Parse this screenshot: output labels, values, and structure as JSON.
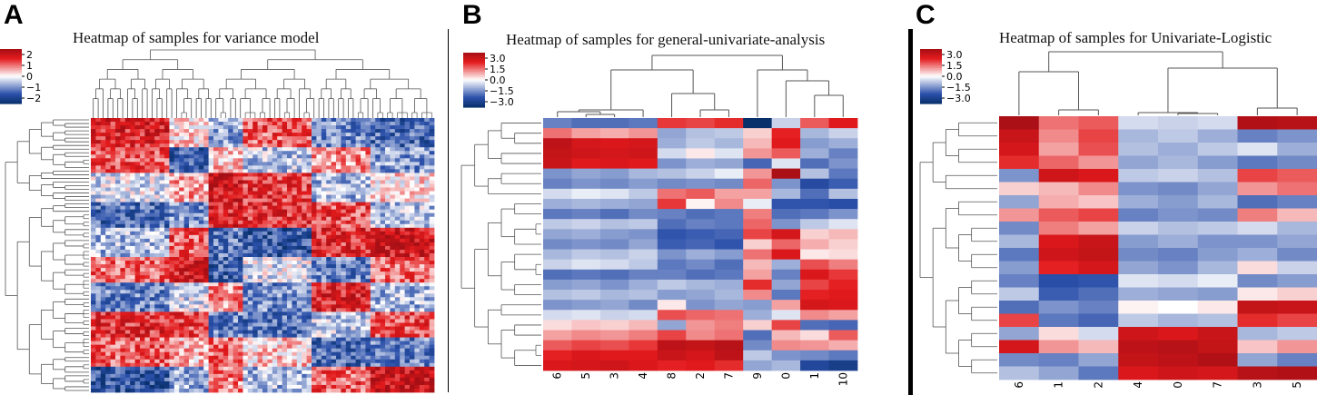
{
  "panels": [
    {
      "letter": "A",
      "title": "Heatmap of samples for variance model"
    },
    {
      "letter": "B",
      "title": "Heatmap of samples for general-univariate-analysis"
    },
    {
      "letter": "C",
      "title": "Heatmap of samples for Univariate-Logistic"
    }
  ],
  "colors": {
    "high": "#a50f15",
    "mid": "#ffffff",
    "low": "#08306b",
    "pos": "#e31a1c",
    "neg": "#2b50aa",
    "line": "#555555"
  },
  "chart_data": [
    {
      "type": "heatmap",
      "title": "Heatmap of samples for variance model",
      "colorbar_ticks": [
        "2",
        "1",
        "0",
        "−1",
        "−2"
      ],
      "colorbar_range": [
        -2.5,
        2.5
      ],
      "columns": 70,
      "rows": 75,
      "x_tick_labels": [],
      "column_clusters": [
        {
          "size": 16,
          "pattern": [
            1.3,
            1.0,
            -0.2,
            -1.1,
            -0.5,
            0.8,
            -0.9,
            1.2,
            0.9,
            -1.3
          ]
        },
        {
          "size": 8,
          "pattern": [
            0.2,
            -1.2,
            0.5,
            -0.8,
            0.9,
            1.4,
            -0.3,
            1.1,
            0.4,
            -0.6
          ]
        },
        {
          "size": 7,
          "pattern": [
            -0.6,
            0.3,
            1.5,
            1.3,
            -1.0,
            -1.2,
            0.6,
            -0.9,
            0.8,
            0.7
          ]
        },
        {
          "size": 14,
          "pattern": [
            0.9,
            -0.4,
            1.1,
            1.2,
            -1.3,
            -0.2,
            -0.8,
            -1.0,
            0.3,
            -0.5
          ]
        },
        {
          "size": 12,
          "pattern": [
            -0.8,
            0.6,
            -0.5,
            1.0,
            1.2,
            -0.9,
            1.3,
            -0.4,
            -1.1,
            0.9
          ]
        },
        {
          "size": 13,
          "pattern": [
            -1.1,
            -0.7,
            0.2,
            -0.4,
            1.4,
            0.8,
            -0.5,
            1.0,
            -0.9,
            1.6
          ]
        }
      ],
      "row_order_pattern_blocks": 10
    },
    {
      "type": "heatmap",
      "title": "Heatmap of samples for general-univariate-analysis",
      "colorbar_ticks": [
        "3.0",
        "1.5",
        "0.0",
        "−1.5",
        "−3.0"
      ],
      "colorbar_range": [
        -3.0,
        3.0
      ],
      "x_tick_labels": [
        "6",
        "5",
        "3",
        "4",
        "8",
        "2",
        "7",
        "9",
        "0",
        "1",
        "10"
      ],
      "values": [
        [
          -1.4,
          -1.6,
          -1.6,
          -1.5,
          1.7,
          1.6,
          1.8,
          -3.0,
          -0.5,
          1.4,
          2.0
        ],
        [
          1.2,
          0.8,
          0.7,
          0.9,
          -1.0,
          -0.7,
          -0.6,
          0.4,
          1.9,
          -0.8,
          -0.5
        ],
        [
          2.6,
          2.2,
          2.1,
          2.2,
          -0.9,
          -0.6,
          -0.8,
          0.6,
          2.0,
          -1.1,
          -0.9
        ],
        [
          2.5,
          2.3,
          2.2,
          2.3,
          -0.4,
          0.2,
          -0.3,
          0.9,
          1.4,
          -0.9,
          -1.4
        ],
        [
          2.4,
          2.0,
          2.1,
          2.0,
          -1.2,
          -0.9,
          -1.0,
          -1.7,
          -0.3,
          -1.6,
          -1.2
        ],
        [
          -1.2,
          -1.0,
          -1.1,
          -0.8,
          -0.7,
          -0.5,
          -0.2,
          0.9,
          2.9,
          -0.7,
          -1.5
        ],
        [
          -1.4,
          -1.2,
          -1.3,
          -1.1,
          -1.3,
          -1.2,
          -1.3,
          1.3,
          -1.2,
          -2.1,
          -1.8
        ],
        [
          -0.4,
          -0.2,
          -0.3,
          -0.6,
          1.2,
          1.4,
          0.8,
          0.8,
          -0.8,
          -1.6,
          -0.7
        ],
        [
          -0.9,
          -0.8,
          -0.9,
          -1.0,
          1.7,
          0.1,
          1.0,
          -0.2,
          -1.9,
          -1.9,
          -2.0
        ],
        [
          -1.5,
          -1.4,
          -1.6,
          -1.3,
          -1.4,
          -1.6,
          -1.5,
          1.1,
          -1.6,
          -1.5,
          -1.2
        ],
        [
          -0.6,
          -0.5,
          -0.7,
          -0.6,
          -1.6,
          -1.4,
          -1.5,
          1.3,
          -1.2,
          -0.6,
          -0.3
        ],
        [
          -1.0,
          -0.9,
          -1.1,
          -1.2,
          -1.9,
          -1.8,
          -1.7,
          1.6,
          2.2,
          0.4,
          0.6
        ],
        [
          -1.3,
          -1.2,
          -1.3,
          -1.0,
          -1.8,
          -1.7,
          -1.9,
          0.4,
          1.3,
          0.7,
          0.4
        ],
        [
          -0.8,
          -0.6,
          -0.7,
          -0.5,
          -1.2,
          -0.9,
          -1.1,
          1.2,
          2.1,
          0.2,
          0.3
        ],
        [
          -0.5,
          -0.3,
          -0.4,
          -0.6,
          -1.5,
          -1.3,
          -1.6,
          0.6,
          -0.9,
          1.5,
          1.1
        ],
        [
          -1.6,
          -1.5,
          -1.6,
          -1.4,
          -1.4,
          -1.6,
          -1.5,
          0.8,
          -1.4,
          2.1,
          1.7
        ],
        [
          -1.1,
          -1.0,
          -1.2,
          -0.9,
          -0.6,
          -0.8,
          -0.9,
          1.8,
          -1.0,
          1.6,
          1.9
        ],
        [
          -0.7,
          -0.6,
          -0.8,
          -0.7,
          -1.1,
          -1.0,
          -0.8,
          1.0,
          -1.5,
          1.9,
          2.0
        ],
        [
          -1.2,
          -1.1,
          -1.0,
          -1.3,
          0.2,
          -1.2,
          -1.0,
          -1.1,
          0.8,
          2.2,
          2.1
        ],
        [
          -0.4,
          -0.3,
          -0.5,
          -0.4,
          1.5,
          1.3,
          1.2,
          -0.9,
          -0.3,
          1.0,
          0.8
        ],
        [
          0.3,
          0.5,
          0.4,
          0.6,
          -1.0,
          0.9,
          1.1,
          0.4,
          1.6,
          -1.6,
          -1.7
        ],
        [
          0.8,
          1.0,
          0.9,
          1.1,
          1.6,
          1.0,
          1.2,
          -1.6,
          0.6,
          0.3,
          1.4
        ],
        [
          1.4,
          1.6,
          1.5,
          1.7,
          2.6,
          2.5,
          2.7,
          -1.3,
          1.0,
          0.9,
          0.7
        ],
        [
          1.9,
          2.1,
          2.0,
          2.0,
          2.4,
          2.2,
          2.6,
          -0.6,
          -1.2,
          -1.3,
          -1.5
        ],
        [
          2.1,
          2.2,
          2.3,
          2.1,
          1.9,
          2.0,
          1.8,
          -1.0,
          -0.8,
          -2.2,
          -2.5
        ]
      ]
    },
    {
      "type": "heatmap",
      "title": "Heatmap of samples for Univariate-Logistic",
      "colorbar_ticks": [
        "3.0",
        "1.5",
        "0.0",
        "−1.5",
        "−3.0"
      ],
      "colorbar_range": [
        -3.0,
        3.0
      ],
      "x_tick_labels": [
        "6",
        "1",
        "2",
        "4",
        "0",
        "7",
        "3",
        "5"
      ],
      "values": [
        [
          2.9,
          1.2,
          1.4,
          -0.4,
          -0.5,
          -0.4,
          2.8,
          2.7
        ],
        [
          2.4,
          1.0,
          1.6,
          -0.8,
          -0.6,
          -0.9,
          -1.4,
          -1.2
        ],
        [
          2.2,
          0.8,
          1.5,
          -0.7,
          -0.9,
          -0.6,
          -0.3,
          -0.9
        ],
        [
          1.8,
          1.3,
          0.9,
          -1.0,
          -0.8,
          -1.1,
          -1.5,
          -1.3
        ],
        [
          -1.2,
          2.3,
          2.1,
          -0.6,
          -0.5,
          -0.7,
          1.6,
          1.4
        ],
        [
          0.4,
          0.6,
          1.0,
          -1.2,
          -1.3,
          -1.0,
          0.9,
          1.2
        ],
        [
          -1.0,
          0.7,
          0.5,
          -0.9,
          -1.1,
          -0.8,
          -1.6,
          -1.4
        ],
        [
          0.9,
          1.4,
          1.6,
          -1.4,
          -1.2,
          -1.3,
          1.1,
          0.6
        ],
        [
          -1.3,
          1.1,
          0.8,
          -0.5,
          -0.7,
          -0.6,
          -0.4,
          -0.8
        ],
        [
          -0.8,
          2.1,
          2.4,
          -1.1,
          -0.9,
          -1.2,
          -1.2,
          -1.0
        ],
        [
          -1.5,
          2.3,
          2.5,
          -1.3,
          -1.4,
          -1.1,
          -0.9,
          -1.3
        ],
        [
          -1.1,
          1.9,
          2.2,
          -1.0,
          -1.2,
          -0.8,
          0.3,
          -0.5
        ],
        [
          -1.4,
          -2.0,
          -1.9,
          -0.3,
          -0.4,
          -0.2,
          -1.3,
          -1.1
        ],
        [
          -0.6,
          -1.8,
          -1.6,
          -0.9,
          -1.0,
          -1.1,
          0.2,
          0.4
        ],
        [
          -1.6,
          -1.2,
          -1.4,
          0.1,
          0.0,
          0.2,
          2.5,
          2.4
        ],
        [
          1.6,
          -1.5,
          -1.7,
          -0.6,
          -0.8,
          -0.7,
          1.8,
          1.6
        ],
        [
          -1.0,
          0.3,
          -0.4,
          2.3,
          2.1,
          2.4,
          -0.8,
          -0.6
        ],
        [
          2.2,
          0.9,
          0.6,
          2.6,
          2.7,
          2.5,
          0.5,
          0.9
        ],
        [
          -1.3,
          -1.4,
          -1.0,
          2.5,
          2.6,
          2.8,
          -1.0,
          -1.4
        ],
        [
          -0.7,
          -1.0,
          -1.5,
          2.1,
          2.3,
          2.2,
          2.7,
          2.8
        ]
      ]
    }
  ]
}
